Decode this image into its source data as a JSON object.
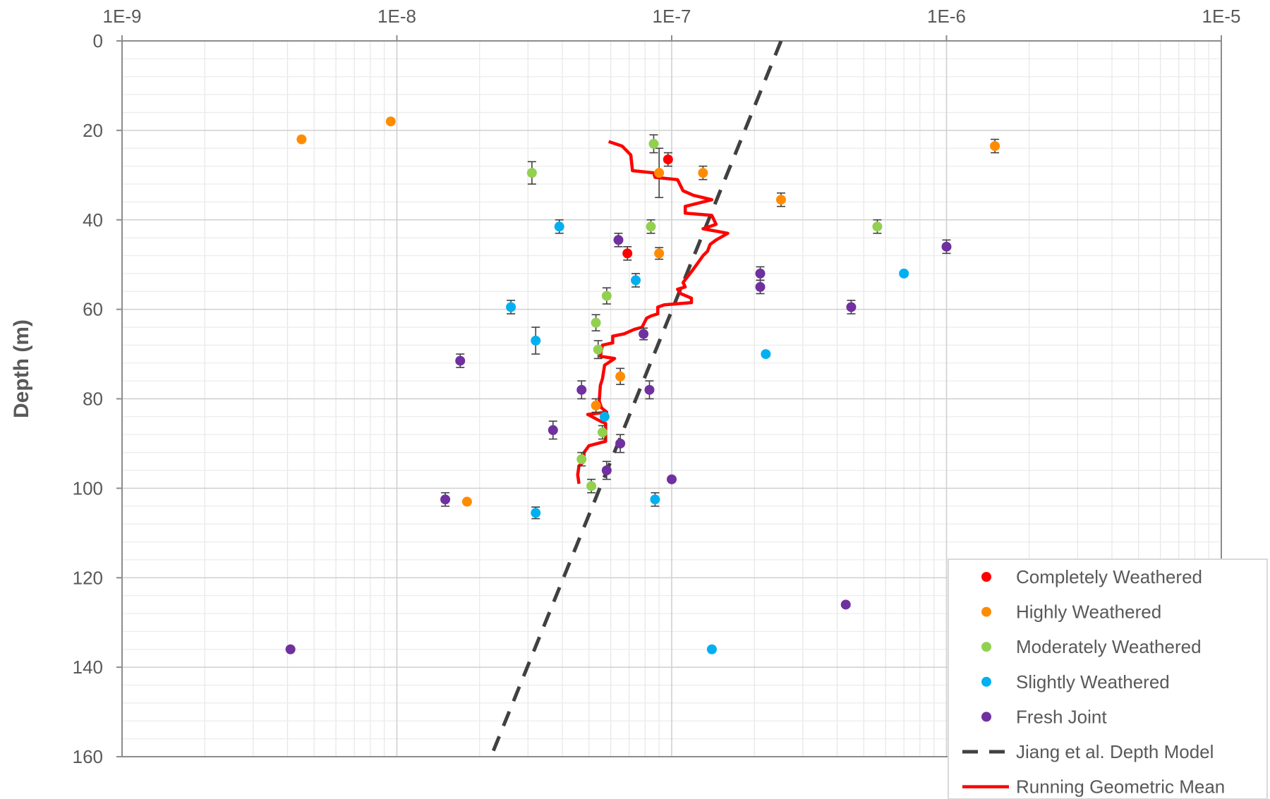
{
  "chart_data": {
    "type": "scatter",
    "title": "",
    "xlabel": "",
    "ylabel": "Depth (m)",
    "x_scale": "log",
    "x_axis_position": "top",
    "xlim": [
      1e-09,
      1e-05
    ],
    "x_ticks": [
      {
        "value": 1e-09,
        "label": "1E-9"
      },
      {
        "value": 1e-08,
        "label": "1E-8"
      },
      {
        "value": 1e-07,
        "label": "1E-7"
      },
      {
        "value": 1e-06,
        "label": "1E-6"
      },
      {
        "value": 1e-05,
        "label": "1E-5"
      }
    ],
    "y_reversed": true,
    "ylim": [
      0,
      160
    ],
    "y_ticks": [
      {
        "value": 0,
        "label": "0"
      },
      {
        "value": 20,
        "label": "20"
      },
      {
        "value": 40,
        "label": "40"
      },
      {
        "value": 60,
        "label": "60"
      },
      {
        "value": 80,
        "label": "80"
      },
      {
        "value": 100,
        "label": "100"
      },
      {
        "value": 120,
        "label": "120"
      },
      {
        "value": 140,
        "label": "140"
      },
      {
        "value": 160,
        "label": "160"
      }
    ],
    "grid": true,
    "legend_position": "bottom-right",
    "series": [
      {
        "name": "Completely Weathered",
        "kind": "points",
        "color": "#ff0000",
        "points": [
          {
            "x": 9.7e-08,
            "y": 26.5,
            "err": 1.5
          },
          {
            "x": 6.9e-08,
            "y": 47.5,
            "err": 1.5
          }
        ]
      },
      {
        "name": "Highly Weathered",
        "kind": "points",
        "color": "#ff8c00",
        "points": [
          {
            "x": 4.5e-09,
            "y": 22
          },
          {
            "x": 9.5e-09,
            "y": 18
          },
          {
            "x": 9e-08,
            "y": 29.5,
            "err": 5.5
          },
          {
            "x": 1.3e-07,
            "y": 29.5,
            "err": 1.5
          },
          {
            "x": 9e-08,
            "y": 47.5,
            "err": 1.3
          },
          {
            "x": 2.5e-07,
            "y": 35.5,
            "err": 1.5
          },
          {
            "x": 1.5e-06,
            "y": 23.5,
            "err": 1.5
          },
          {
            "x": 6.5e-08,
            "y": 75,
            "err": 1.8
          },
          {
            "x": 5.3e-08,
            "y": 81.5,
            "err": 1.5
          },
          {
            "x": 1.8e-08,
            "y": 103
          }
        ]
      },
      {
        "name": "Moderately Weathered",
        "kind": "points",
        "color": "#92d050",
        "points": [
          {
            "x": 8.6e-08,
            "y": 23,
            "err": 2
          },
          {
            "x": 3.1e-08,
            "y": 29.5,
            "err": 2.5
          },
          {
            "x": 8.4e-08,
            "y": 41.5,
            "err": 1.5
          },
          {
            "x": 5.6e-07,
            "y": 41.5,
            "err": 1.5
          },
          {
            "x": 5.8e-08,
            "y": 57,
            "err": 1.8
          },
          {
            "x": 5.3e-08,
            "y": 63,
            "err": 1.8
          },
          {
            "x": 5.4e-08,
            "y": 69,
            "err": 2
          },
          {
            "x": 5.6e-08,
            "y": 87.5,
            "err": 1.5
          },
          {
            "x": 4.7e-08,
            "y": 93.5,
            "err": 1.5
          },
          {
            "x": 5.1e-08,
            "y": 99.5,
            "err": 1.5
          }
        ]
      },
      {
        "name": "Slightly Weathered",
        "kind": "points",
        "color": "#00b0f0",
        "points": [
          {
            "x": 3.9e-08,
            "y": 41.5,
            "err": 1.5
          },
          {
            "x": 7.4e-08,
            "y": 53.5,
            "err": 1.5
          },
          {
            "x": 7e-07,
            "y": 52
          },
          {
            "x": 2.6e-08,
            "y": 59.5,
            "err": 1.5
          },
          {
            "x": 3.2e-08,
            "y": 67,
            "err": 3
          },
          {
            "x": 2.2e-07,
            "y": 70
          },
          {
            "x": 5.7e-08,
            "y": 84
          },
          {
            "x": 8.7e-08,
            "y": 102.5,
            "err": 1.5
          },
          {
            "x": 3.2e-08,
            "y": 105.5,
            "err": 1.3
          },
          {
            "x": 1.4e-07,
            "y": 136
          }
        ]
      },
      {
        "name": "Fresh Joint",
        "kind": "points",
        "color": "#7030a0",
        "points": [
          {
            "x": 6.4e-08,
            "y": 44.5,
            "err": 1.5
          },
          {
            "x": 1e-06,
            "y": 46,
            "err": 1.5
          },
          {
            "x": 2.1e-07,
            "y": 52,
            "err": 1.5
          },
          {
            "x": 2.1e-07,
            "y": 55,
            "err": 1.5
          },
          {
            "x": 4.5e-07,
            "y": 59.5,
            "err": 1.5
          },
          {
            "x": 7.9e-08,
            "y": 65.5,
            "err": 1.3
          },
          {
            "x": 1.7e-08,
            "y": 71.5,
            "err": 1.5
          },
          {
            "x": 4.7e-08,
            "y": 78,
            "err": 2
          },
          {
            "x": 8.3e-08,
            "y": 78,
            "err": 2
          },
          {
            "x": 3.7e-08,
            "y": 87,
            "err": 2
          },
          {
            "x": 6.5e-08,
            "y": 90,
            "err": 2
          },
          {
            "x": 5.8e-08,
            "y": 96,
            "err": 2
          },
          {
            "x": 1e-07,
            "y": 98
          },
          {
            "x": 1.5e-08,
            "y": 102.5,
            "err": 1.5
          },
          {
            "x": 4.3e-07,
            "y": 126
          },
          {
            "x": 4.1e-09,
            "y": 136
          }
        ]
      },
      {
        "name": "Jiang et al. Depth Model",
        "kind": "line",
        "color": "#404040",
        "dash": true,
        "points": [
          {
            "x": 2.5e-07,
            "y": 0
          },
          {
            "x": 2.2e-08,
            "y": 160
          }
        ]
      },
      {
        "name": "Running Geometric Mean",
        "kind": "line",
        "color": "#ff0000",
        "points": [
          {
            "x": 5.9e-08,
            "y": 22.5
          },
          {
            "x": 6.6e-08,
            "y": 23.5
          },
          {
            "x": 7.1e-08,
            "y": 25.5
          },
          {
            "x": 7.2e-08,
            "y": 29
          },
          {
            "x": 8.6e-08,
            "y": 29.5
          },
          {
            "x": 8.7e-08,
            "y": 30.5
          },
          {
            "x": 1.05e-07,
            "y": 31
          },
          {
            "x": 1.1e-07,
            "y": 33.5
          },
          {
            "x": 1.2e-07,
            "y": 34.5
          },
          {
            "x": 1.4e-07,
            "y": 35.5
          },
          {
            "x": 1.12e-07,
            "y": 37
          },
          {
            "x": 1.12e-07,
            "y": 38.5
          },
          {
            "x": 1.4e-07,
            "y": 39
          },
          {
            "x": 1.45e-07,
            "y": 41
          },
          {
            "x": 1.3e-07,
            "y": 42
          },
          {
            "x": 1.6e-07,
            "y": 43
          },
          {
            "x": 1.45e-07,
            "y": 44.5
          },
          {
            "x": 1.38e-07,
            "y": 45.5
          },
          {
            "x": 1.35e-07,
            "y": 47
          },
          {
            "x": 1.3e-07,
            "y": 48
          },
          {
            "x": 1.25e-07,
            "y": 49.5
          },
          {
            "x": 1.2e-07,
            "y": 51
          },
          {
            "x": 1.15e-07,
            "y": 52.5
          },
          {
            "x": 1.1e-07,
            "y": 54
          },
          {
            "x": 1.12e-07,
            "y": 55
          },
          {
            "x": 1.05e-07,
            "y": 55.5
          },
          {
            "x": 1.08e-07,
            "y": 56.5
          },
          {
            "x": 1.18e-07,
            "y": 57.5
          },
          {
            "x": 1.18e-07,
            "y": 58.5
          },
          {
            "x": 9.4e-08,
            "y": 59
          },
          {
            "x": 8.9e-08,
            "y": 59.5
          },
          {
            "x": 8.9e-08,
            "y": 61
          },
          {
            "x": 8.4e-08,
            "y": 61.5
          },
          {
            "x": 8.1e-08,
            "y": 62
          },
          {
            "x": 7.8e-08,
            "y": 64
          },
          {
            "x": 7.3e-08,
            "y": 64.5
          },
          {
            "x": 6.7e-08,
            "y": 65.5
          },
          {
            "x": 6.1e-08,
            "y": 66
          },
          {
            "x": 6.1e-08,
            "y": 67.5
          },
          {
            "x": 5.6e-08,
            "y": 68
          },
          {
            "x": 5.5e-08,
            "y": 70.5
          },
          {
            "x": 6.2e-08,
            "y": 71
          },
          {
            "x": 5.7e-08,
            "y": 72.5
          },
          {
            "x": 5.6e-08,
            "y": 75.5
          },
          {
            "x": 5.5e-08,
            "y": 77
          },
          {
            "x": 5.45e-08,
            "y": 80.5
          },
          {
            "x": 5.55e-08,
            "y": 82
          },
          {
            "x": 5.8e-08,
            "y": 83
          },
          {
            "x": 4.95e-08,
            "y": 83.5
          },
          {
            "x": 5.5e-08,
            "y": 85
          },
          {
            "x": 5.75e-08,
            "y": 85.5
          },
          {
            "x": 5.75e-08,
            "y": 89.5
          },
          {
            "x": 5e-08,
            "y": 90.5
          },
          {
            "x": 4.8e-08,
            "y": 92
          },
          {
            "x": 4.8e-08,
            "y": 94
          },
          {
            "x": 4.6e-08,
            "y": 95
          },
          {
            "x": 4.55e-08,
            "y": 97
          },
          {
            "x": 4.6e-08,
            "y": 99
          }
        ]
      }
    ]
  }
}
